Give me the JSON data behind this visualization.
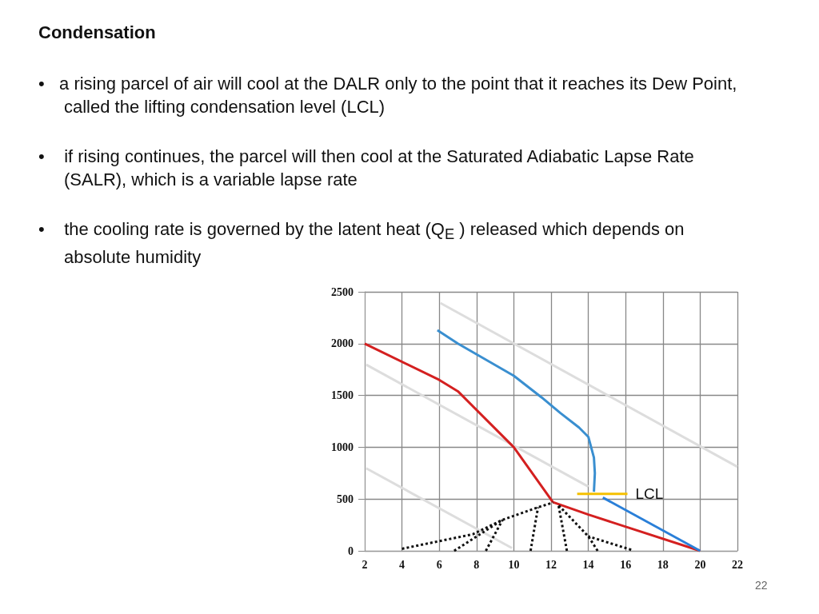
{
  "chart_data": {
    "type": "line",
    "title": "Condensation",
    "annotations": [
      "•   a rising parcel of air will cool at the DALR only to the point that it reaches its Dew Point, called the lifting condensation level (LCL)",
      "•    if rising continues, the parcel will then cool at the Saturated Adiabatic Lapse Rate (SALR), which is a variable lapse rate",
      "•    the cooling rate is governed by the latent heat (Q$_{E}$ ) released which depends on absolute humidity",
      {
        "text": "LCL",
        "x": 16.1,
        "y": 550
      },
      "22"
    ],
    "xlim": [
      2,
      22
    ],
    "xticks": [
      2,
      4,
      6,
      8,
      10,
      12,
      14,
      16,
      18,
      20,
      22
    ],
    "ylim": [
      0,
      2500
    ],
    "yticks": [
      0,
      500,
      1000,
      1500,
      2000,
      2500
    ],
    "grid": true,
    "marker": "none",
    "line_style": "solid",
    "series": [
      {
        "color": "#dddddd",
        "x": [
          6.06,
          22
        ],
        "values": [
          2392,
          811
        ]
      },
      {
        "color": "#dddddd",
        "x": [
          2.08,
          14
        ],
        "values": [
          1797,
          620
        ]
      },
      {
        "color": "#dddddd",
        "x": [
          2.08,
          9.9
        ],
        "values": [
          797,
          27
        ]
      },
      {
        "color": "#d42020",
        "x": [
          2,
          6,
          7,
          10,
          12.1
        ],
        "values": [
          2000,
          1650,
          1540,
          1000,
          470
        ]
      },
      {
        "color": "#d42020",
        "x": [
          12.1,
          14,
          20
        ],
        "values": [
          470,
          350,
          0
        ]
      },
      {
        "color": "#3a8fd0",
        "x": [
          5.9,
          7,
          10,
          11.5,
          12.5,
          13.5,
          14,
          14.3,
          14.35,
          14.3
        ],
        "values": [
          2130,
          2000,
          1690,
          1480,
          1330,
          1190,
          1100,
          900,
          750,
          570
        ]
      },
      {
        "color": "#2a7fd8",
        "x": [
          14.78,
          20
        ],
        "values": [
          514,
          0
        ]
      },
      {
        "color": "#f5c000",
        "x": [
          13.4,
          16.1
        ],
        "values": [
          550,
          550
        ]
      },
      {
        "color": "#111111",
        "line_style": "dotted",
        "x": [
          4,
          7.8,
          9.4,
          11.3,
          12,
          12.1
        ],
        "values": [
          20,
          160,
          300,
          420,
          460,
          470
        ]
      },
      {
        "color": "#111111",
        "line_style": "dotted",
        "x": [
          6.8,
          9.4
        ],
        "values": [
          0,
          300
        ]
      },
      {
        "color": "#111111",
        "line_style": "dotted",
        "x": [
          8.5,
          9.4
        ],
        "values": [
          0,
          300
        ]
      },
      {
        "color": "#111111",
        "line_style": "dotted",
        "x": [
          10.9,
          11.3
        ],
        "values": [
          0,
          420
        ]
      },
      {
        "color": "#111111",
        "line_style": "dotted",
        "x": [
          12.85,
          12.4
        ],
        "values": [
          0,
          440
        ]
      },
      {
        "color": "#111111",
        "line_style": "dotted",
        "x": [
          14.5,
          14,
          12.4
        ],
        "values": [
          0,
          140,
          440
        ]
      },
      {
        "color": "#111111",
        "line_style": "dotted",
        "x": [
          16.3,
          14
        ],
        "values": [
          10,
          140
        ]
      }
    ]
  }
}
